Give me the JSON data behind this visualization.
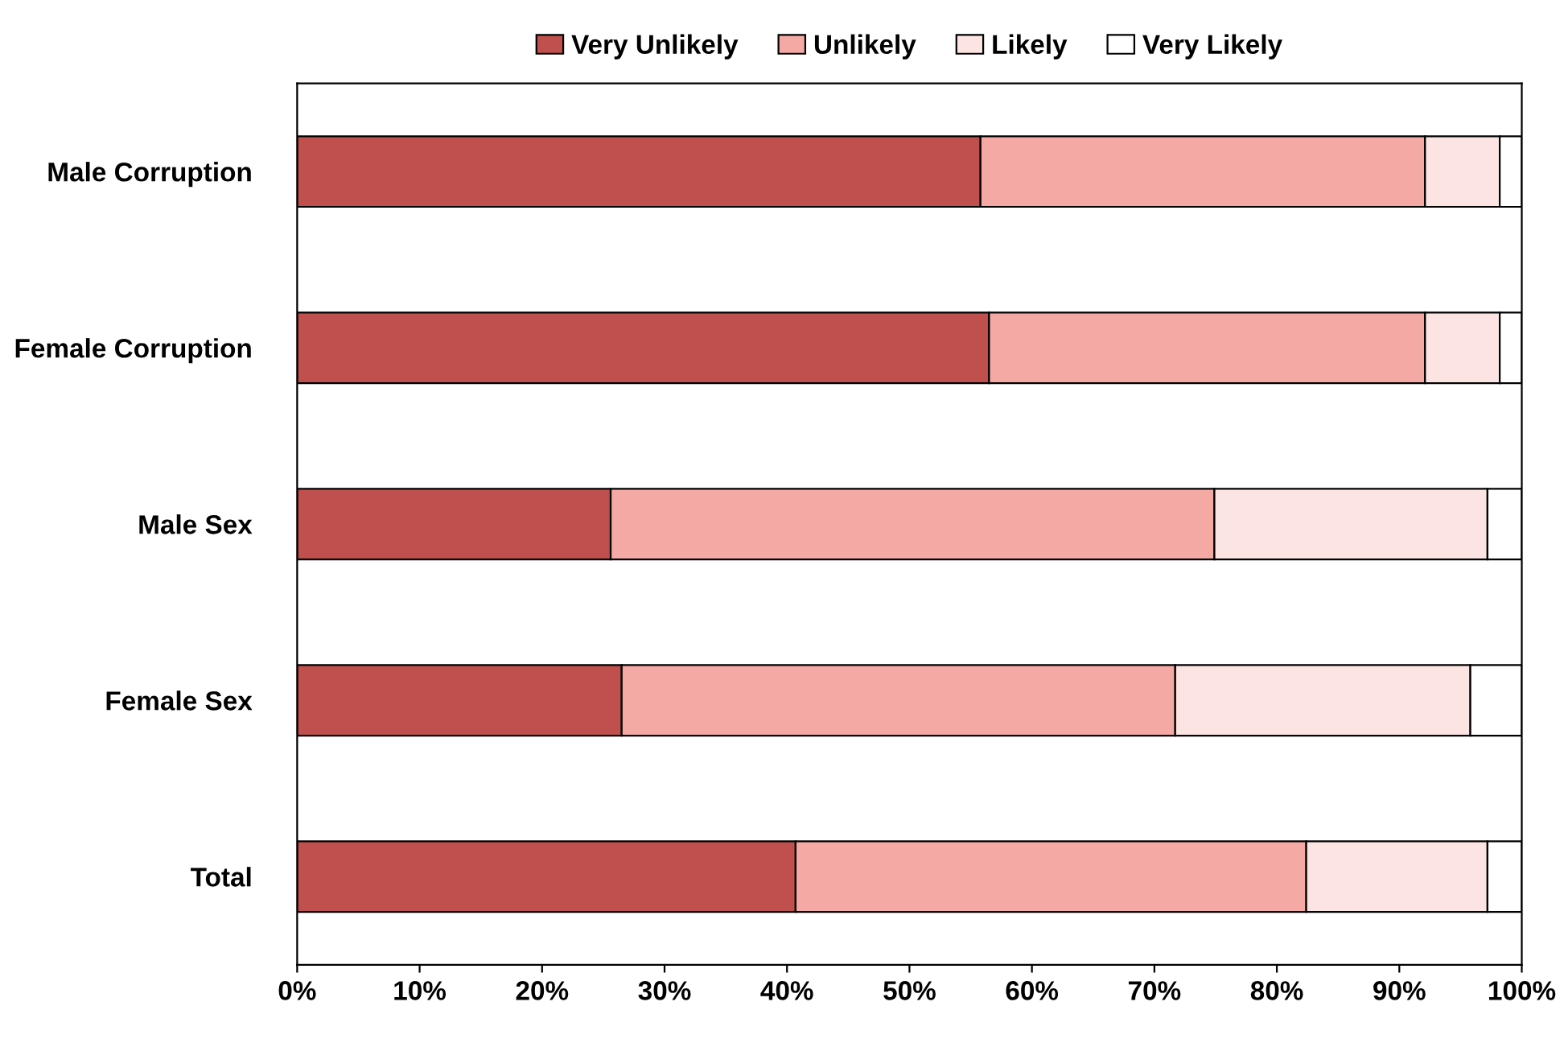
{
  "chart_data": {
    "type": "bar",
    "orientation": "horizontal",
    "stacked": true,
    "categories": [
      "Male Corruption",
      "Female Corruption",
      "Male Sex",
      "Female Sex",
      "Total"
    ],
    "series": [
      {
        "name": "Very Unlikely",
        "color": "#c0504d",
        "values": [
          55.8,
          56.5,
          25.6,
          26.5,
          40.7
        ]
      },
      {
        "name": "Unlikely",
        "color": "#f4a9a5",
        "values": [
          36.3,
          35.6,
          49.3,
          45.2,
          41.7
        ]
      },
      {
        "name": "Likely",
        "color": "#fce4e3",
        "values": [
          6.1,
          6.1,
          22.3,
          24.1,
          14.8
        ]
      },
      {
        "name": "Very Likely",
        "color": "#ffffff",
        "values": [
          1.8,
          1.8,
          2.8,
          4.2,
          2.8
        ]
      }
    ],
    "xlim": [
      0,
      100
    ],
    "xticks": [
      {
        "value": 0,
        "label": "0%"
      },
      {
        "value": 10,
        "label": "10%"
      },
      {
        "value": 20,
        "label": "20%"
      },
      {
        "value": 30,
        "label": "30%"
      },
      {
        "value": 40,
        "label": "40%"
      },
      {
        "value": 50,
        "label": "50%"
      },
      {
        "value": 60,
        "label": "60%"
      },
      {
        "value": 70,
        "label": "70%"
      },
      {
        "value": 80,
        "label": "80%"
      },
      {
        "value": 90,
        "label": "90%"
      },
      {
        "value": 100,
        "label": "100%"
      }
    ],
    "legend": "top",
    "grid": false
  }
}
